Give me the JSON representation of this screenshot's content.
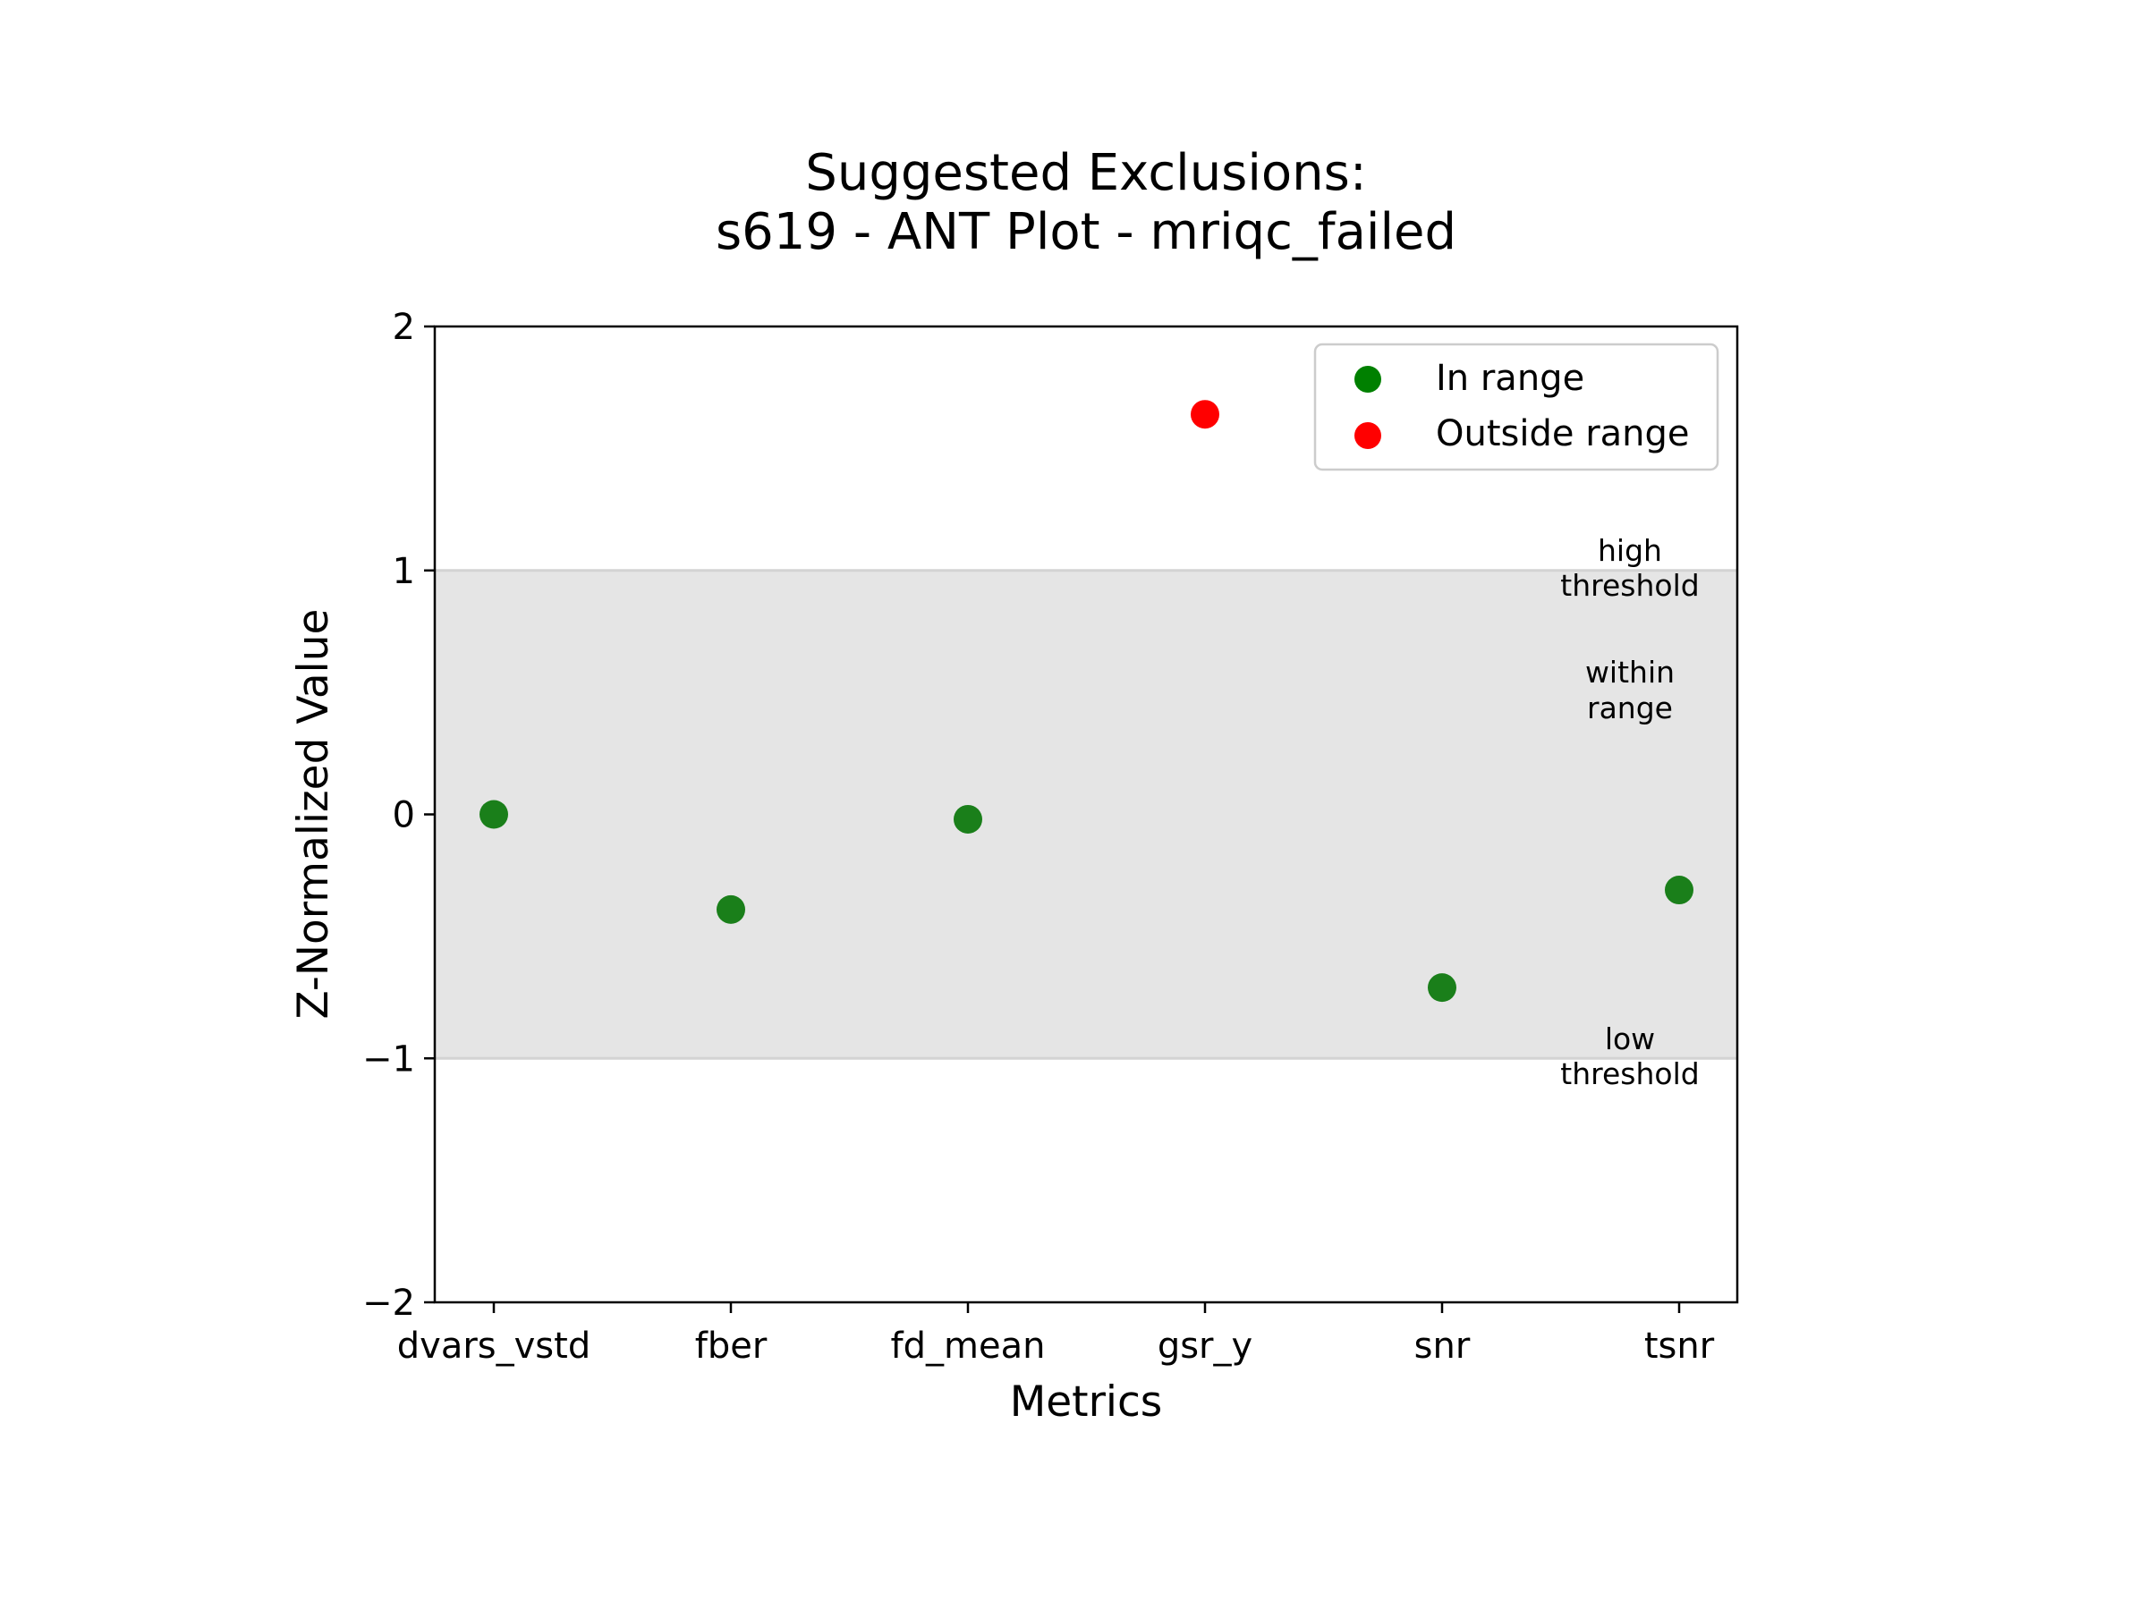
{
  "chart_data": {
    "type": "scatter",
    "title_line1": "Suggested Exclusions:",
    "title_line2": "s619 - ANT Plot - mriqc_failed",
    "xlabel": "Metrics",
    "ylabel": "Z-Normalized Value",
    "categories": [
      "dvars_vstd",
      "fber",
      "fd_mean",
      "gsr_y",
      "snr",
      "tsnr"
    ],
    "values": [
      0.0,
      -0.39,
      -0.02,
      1.64,
      -0.71,
      -0.31
    ],
    "status": [
      "in",
      "in",
      "in",
      "out",
      "in",
      "in"
    ],
    "ylim": [
      -2,
      2
    ],
    "yticks": [
      "2",
      "1",
      "0",
      "−1",
      "−2"
    ],
    "ytick_values": [
      2,
      1,
      0,
      -1,
      -2
    ],
    "band": {
      "low": -1,
      "high": 1,
      "color": "#e5e5e5"
    },
    "annotations": {
      "high_line1": "high",
      "high_line2": "threshold",
      "within_line1": "within",
      "within_line2": "range",
      "low_line1": "low",
      "low_line2": "threshold"
    },
    "legend": {
      "placement": "top-right",
      "in_label": "In range",
      "out_label": "Outside range"
    },
    "colors": {
      "in": "#1a7f1a",
      "out": "#ff0000",
      "legend_in": "#008000"
    },
    "grid": false
  }
}
